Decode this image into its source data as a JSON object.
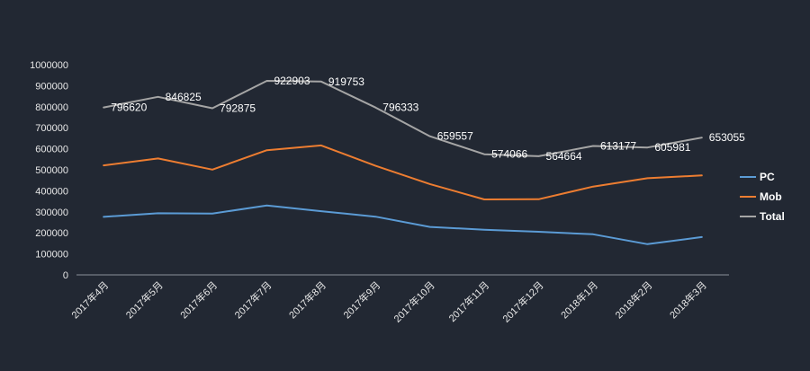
{
  "chart_data": {
    "type": "line",
    "title": "",
    "xlabel": "",
    "ylabel": "",
    "categories": [
      "2017年4月",
      "2017年5月",
      "2017年6月",
      "2017年7月",
      "2017年8月",
      "2017年9月",
      "2017年10月",
      "2017年11月",
      "2017年12月",
      "2018年1月",
      "2018年2月",
      "2018年3月"
    ],
    "y_ticks": [
      "0",
      "100000",
      "200000",
      "300000",
      "400000",
      "500000",
      "600000",
      "700000",
      "800000",
      "900000",
      "1000000"
    ],
    "ylim": [
      0,
      1000000
    ],
    "grid": false,
    "legend_position": "right",
    "series": [
      {
        "name": "PC",
        "color": "#5b9bd5",
        "values": [
          276000,
          293000,
          292000,
          330000,
          303000,
          277000,
          228000,
          215000,
          205000,
          193000,
          146000,
          180000
        ],
        "labels": []
      },
      {
        "name": "Mob",
        "color": "#ed7d31",
        "values": [
          521000,
          554000,
          501000,
          593000,
          616000,
          519000,
          432000,
          359000,
          360000,
          420000,
          460000,
          473000
        ],
        "labels": []
      },
      {
        "name": "Total",
        "color": "#a5a5a5",
        "values": [
          796620,
          846825,
          792875,
          922903,
          919753,
          796333,
          659557,
          574066,
          564664,
          613177,
          605981,
          653055
        ],
        "labels": [
          "796620",
          "846825",
          "792875",
          "922903",
          "919753",
          "796333",
          "659557",
          "574066",
          "564664",
          "613177",
          "605981",
          "653055"
        ]
      }
    ]
  }
}
